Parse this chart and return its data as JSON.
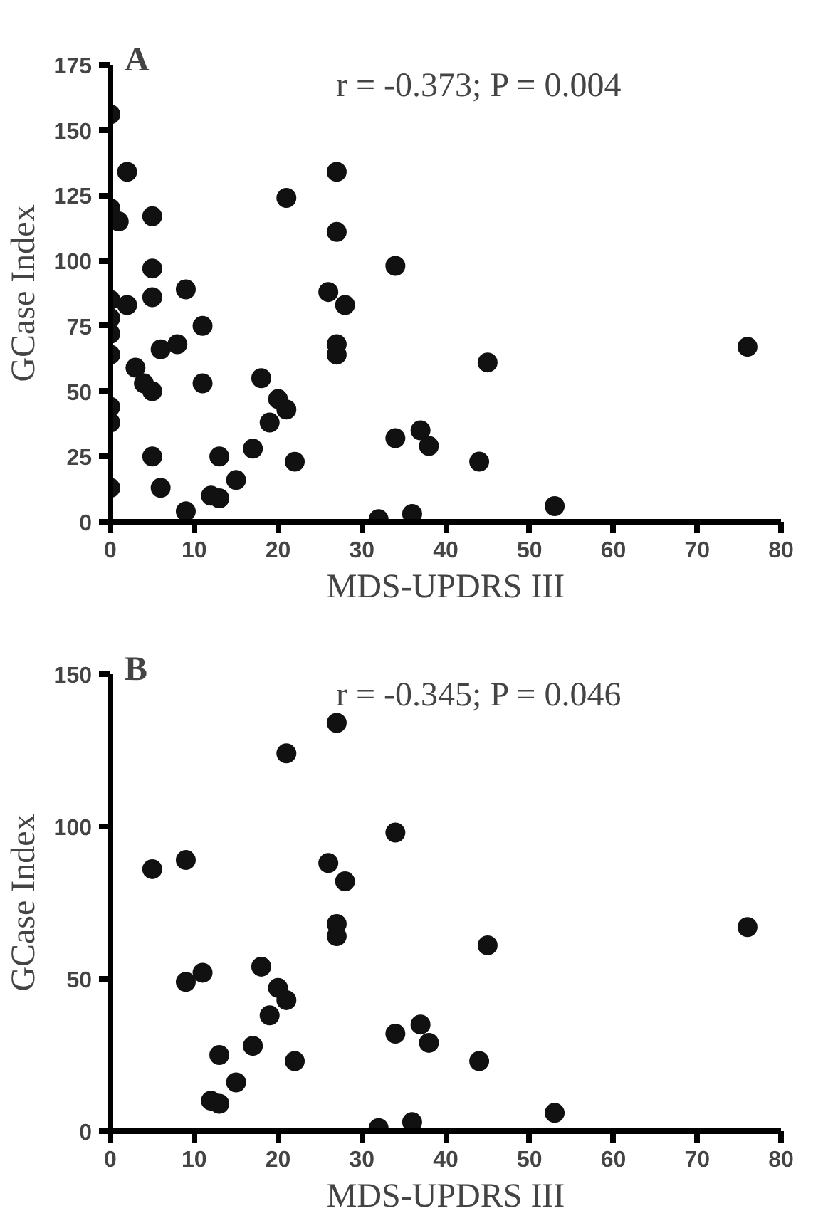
{
  "chart_data": [
    {
      "type": "scatter",
      "title": "A",
      "xlabel": "MDS-UPDRS III",
      "ylabel": "GCase Index",
      "annotations": [
        "r = -0.373; P = 0.004"
      ],
      "xlim": [
        0,
        80
      ],
      "xticks": [
        0,
        10,
        20,
        30,
        40,
        50,
        60,
        70,
        80
      ],
      "ylim": [
        0,
        175
      ],
      "yticks": [
        0,
        25,
        50,
        75,
        100,
        125,
        150,
        175
      ],
      "grid": false,
      "marker": "circle",
      "series": [
        {
          "color": "#111111",
          "x": [
            0,
            0,
            0,
            0,
            0,
            0,
            0,
            0,
            0,
            1,
            2,
            2,
            3,
            4,
            5,
            5,
            5,
            5,
            5,
            6,
            6,
            8,
            9,
            9,
            11,
            11,
            12,
            13,
            13,
            15,
            17,
            18,
            19,
            20,
            21,
            21,
            22,
            26,
            27,
            27,
            27,
            27,
            28,
            32,
            34,
            34,
            36,
            37,
            38,
            44,
            45,
            53,
            76
          ],
          "values": [
            156,
            120,
            85,
            78,
            72,
            64,
            44,
            38,
            13,
            115,
            134,
            83,
            59,
            53,
            117,
            97,
            86,
            50,
            25,
            13,
            66,
            68,
            89,
            4,
            75,
            53,
            10,
            9,
            25,
            16,
            28,
            55,
            38,
            47,
            124,
            43,
            23,
            88,
            134,
            111,
            68,
            64,
            83,
            1,
            98,
            32,
            3,
            35,
            29,
            23,
            61,
            6,
            67
          ]
        }
      ]
    },
    {
      "type": "scatter",
      "title": "B",
      "xlabel": "MDS-UPDRS III",
      "ylabel": "GCase Index",
      "annotations": [
        "r = -0.345; P = 0.046"
      ],
      "xlim": [
        0,
        80
      ],
      "xticks": [
        0,
        10,
        20,
        30,
        40,
        50,
        60,
        70,
        80
      ],
      "ylim": [
        0,
        150
      ],
      "yticks": [
        0,
        50,
        100,
        150
      ],
      "grid": false,
      "marker": "circle",
      "series": [
        {
          "color": "#111111",
          "x": [
            5,
            9,
            9,
            11,
            12,
            13,
            13,
            15,
            17,
            18,
            19,
            20,
            21,
            21,
            22,
            26,
            27,
            27,
            27,
            28,
            32,
            34,
            34,
            36,
            37,
            38,
            44,
            45,
            53,
            76
          ],
          "values": [
            86,
            89,
            49,
            52,
            10,
            9,
            25,
            16,
            28,
            54,
            38,
            47,
            124,
            43,
            23,
            88,
            134,
            68,
            64,
            82,
            1,
            98,
            32,
            3,
            35,
            29,
            23,
            61,
            6,
            67
          ]
        }
      ]
    }
  ]
}
